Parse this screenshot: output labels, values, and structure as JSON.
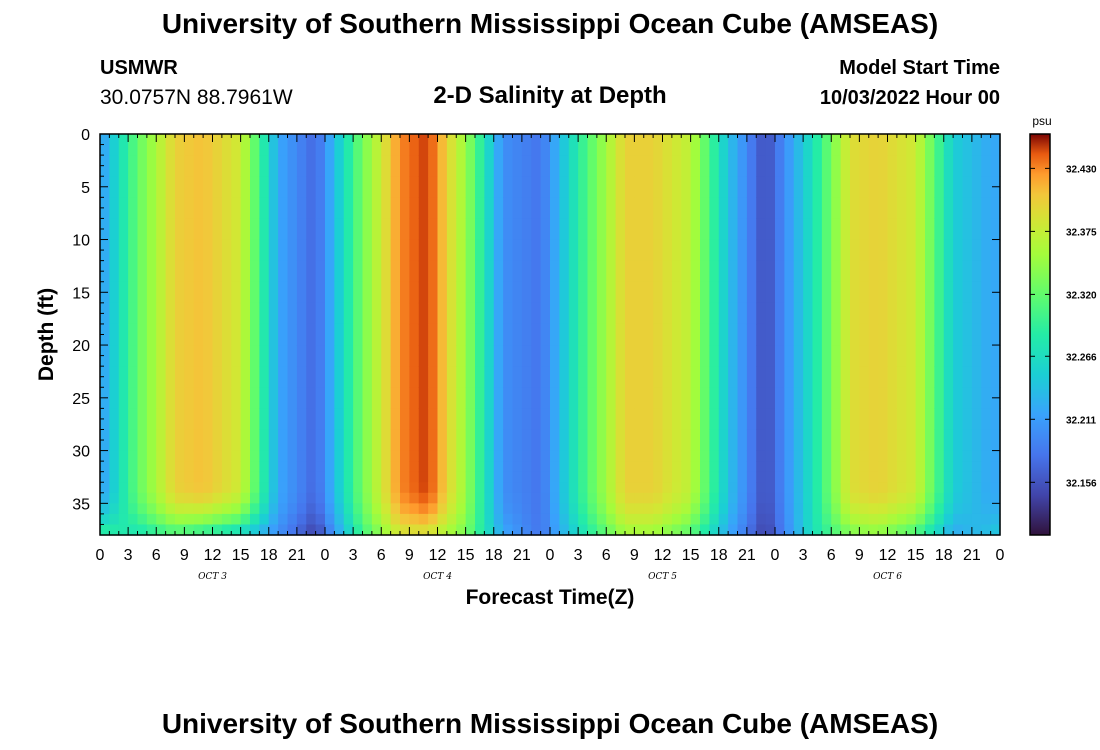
{
  "header": {
    "title": "University of Southern Mississippi Ocean Cube (AMSEAS)",
    "station_id": "USMWR",
    "coordinates": "30.0757N  88.7961W",
    "subtitle": "2-D Salinity at Depth",
    "model_start_label": "Model Start Time",
    "model_start_value": "10/03/2022 Hour 00"
  },
  "footer": {
    "title": "University of Southern Mississippi Ocean Cube (AMSEAS)"
  },
  "chart_data": {
    "type": "heatmap",
    "title": "2-D Salinity at Depth",
    "xlabel": "Forecast Time(Z)",
    "ylabel": "Depth (ft)",
    "x_range_hours": [
      0,
      96
    ],
    "x_tick_labels": [
      "0",
      "3",
      "6",
      "9",
      "12",
      "15",
      "18",
      "21",
      "0",
      "3",
      "6",
      "9",
      "12",
      "15",
      "18",
      "21",
      "0",
      "3",
      "6",
      "9",
      "12",
      "15",
      "18",
      "21",
      "0",
      "3",
      "6",
      "9",
      "12",
      "15",
      "18",
      "21",
      "0"
    ],
    "x_tick_step_hours": 3,
    "day_labels": [
      "OCT 3",
      "OCT 4",
      "OCT 5",
      "OCT 6"
    ],
    "day_label_hour_offset": 12,
    "ylim": [
      0,
      38
    ],
    "y_inverted": true,
    "y_ticks": [
      0,
      5,
      10,
      15,
      20,
      25,
      30,
      35
    ],
    "colorbar": {
      "unit": "psu",
      "min": 32.11,
      "max": 32.46,
      "tick_values": [
        32.43,
        32.375,
        32.32,
        32.266,
        32.211,
        32.156
      ],
      "tick_labels": [
        "32.430",
        "32.375",
        "32.320",
        "32.266",
        "32.211",
        "32.156"
      ],
      "colormap": "turbo"
    },
    "profile_hours": [
      0,
      4,
      8,
      11,
      15,
      19,
      23,
      28,
      32,
      35,
      39,
      43,
      47,
      52,
      56,
      59,
      63,
      67,
      71,
      76,
      80,
      83,
      87,
      91,
      95,
      96
    ],
    "surface_salinity": [
      32.21,
      32.32,
      32.4,
      32.41,
      32.38,
      32.22,
      32.17,
      32.33,
      32.43,
      32.45,
      32.35,
      32.2,
      32.18,
      32.31,
      32.4,
      32.4,
      32.37,
      32.24,
      32.15,
      32.27,
      32.39,
      32.4,
      32.38,
      32.25,
      32.22,
      32.22
    ],
    "bottom_layer_depth_ft": 33,
    "bottom_salinity": [
      32.3,
      32.27,
      32.3,
      32.28,
      32.25,
      32.2,
      32.14,
      32.3,
      32.38,
      32.38,
      32.33,
      32.22,
      32.18,
      32.28,
      32.35,
      32.35,
      32.31,
      32.22,
      32.14,
      32.27,
      32.33,
      32.34,
      32.3,
      32.22,
      32.24,
      32.25
    ]
  }
}
